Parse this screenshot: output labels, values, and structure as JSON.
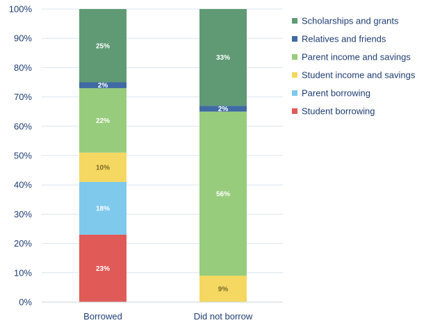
{
  "chart_data": {
    "type": "bar",
    "stacked": true,
    "categories": [
      "Borrowed",
      "Did not borrow"
    ],
    "series": [
      {
        "name": "Student borrowing",
        "color": "#e05a57",
        "values": [
          23,
          0
        ]
      },
      {
        "name": "Parent borrowing",
        "color": "#7ec9ec",
        "values": [
          18,
          0
        ]
      },
      {
        "name": "Student income and savings",
        "color": "#f5d862",
        "values": [
          10,
          9
        ]
      },
      {
        "name": "Parent income and savings",
        "color": "#98cc7d",
        "values": [
          22,
          56
        ]
      },
      {
        "name": "Relatives and friends",
        "color": "#3f6aa3",
        "values": [
          2,
          2
        ]
      },
      {
        "name": "Scholarships and grants",
        "color": "#5f9a74",
        "values": [
          25,
          33
        ]
      }
    ],
    "data_labels": [
      [
        "23%",
        "18%",
        "10%",
        "22%",
        "2%",
        "25%"
      ],
      [
        "",
        "",
        "9%",
        "56%",
        "2%",
        "33%"
      ]
    ],
    "y_ticks": [
      "0%",
      "10%",
      "20%",
      "30%",
      "40%",
      "50%",
      "60%",
      "70%",
      "80%",
      "90%",
      "100%"
    ],
    "ylim": [
      0,
      100
    ],
    "legend_order": [
      "Scholarships and grants",
      "Relatives and friends",
      "Parent income and savings",
      "Student income and savings",
      "Parent borrowing",
      "Student borrowing"
    ],
    "legend_position": "right",
    "grid": true
  }
}
